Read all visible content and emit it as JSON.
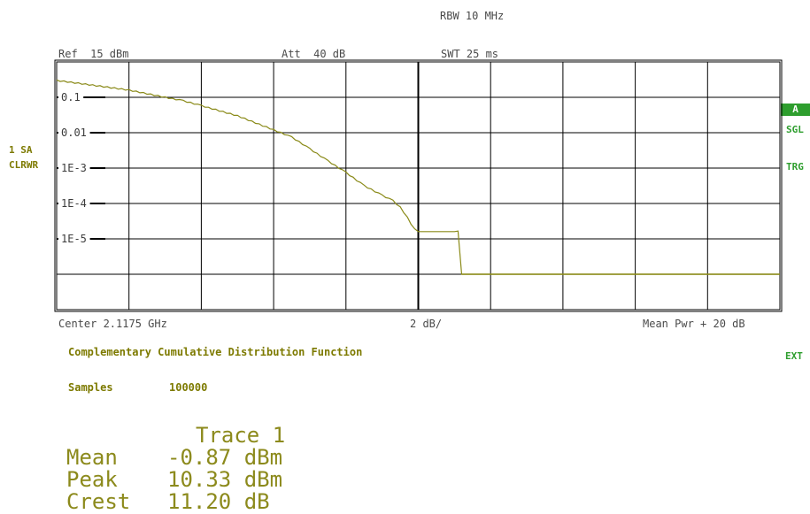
{
  "header": {
    "rbw": "RBW 10 MHz",
    "ref": "Ref  15 dBm",
    "att": "Att  40 dB",
    "swt": "SWT 25 ms"
  },
  "left_labels": {
    "trace_num": "1 SA",
    "mode": "CLRWR"
  },
  "right_indicators": {
    "a": "A",
    "sgl": "SGL",
    "trg": "TRG",
    "ext": "EXT"
  },
  "footer": {
    "center": "Center 2.1175 GHz",
    "scale": "2 dB/",
    "right": "Mean Pwr + 20 dB"
  },
  "function_title": "Complementary Cumulative Distribution Function",
  "samples": {
    "label": "Samples",
    "value": "100000"
  },
  "results": {
    "heading": "Trace 1",
    "rows": [
      {
        "label": "Mean",
        "value": "-0.87 dBm"
      },
      {
        "label": "Peak",
        "value": "10.33 dBm"
      },
      {
        "label": "Crest",
        "value": "11.20 dB"
      }
    ]
  },
  "colors": {
    "trace": "#8a8a18",
    "indicator": "#2e9e2e",
    "grid": "#000000"
  },
  "chart_data": {
    "type": "line",
    "xlabel": "",
    "ylabel": "",
    "y_scale": "log",
    "x_range_db": [
      0,
      20
    ],
    "ylim": [
      1e-06,
      1
    ],
    "y_tick_labels": [
      "0.1",
      "0.01",
      "1E-3",
      "1E-4",
      "1E-5"
    ],
    "grid": true,
    "series": [
      {
        "x": [
          0,
          1,
          2,
          3,
          3.5,
          4,
          5,
          6,
          6.5,
          7,
          7.5,
          8,
          8.5,
          9,
          9.3,
          9.5,
          9.7,
          9.8,
          10,
          10.5,
          11,
          11.1,
          11.2,
          11.3,
          12,
          14,
          16,
          18,
          20
        ],
        "y": [
          0.3,
          0.22,
          0.16,
          0.1,
          0.08,
          0.058,
          0.03,
          0.012,
          0.0075,
          0.0035,
          0.0016,
          0.00075,
          0.00032,
          0.00017,
          0.00012,
          7.8e-05,
          4e-05,
          2.5e-05,
          1.6e-05,
          1.6e-05,
          1.6e-05,
          1.6e-05,
          1e-06,
          1e-06,
          1e-06,
          1e-06,
          1e-06,
          1e-06,
          1e-06
        ]
      }
    ]
  }
}
